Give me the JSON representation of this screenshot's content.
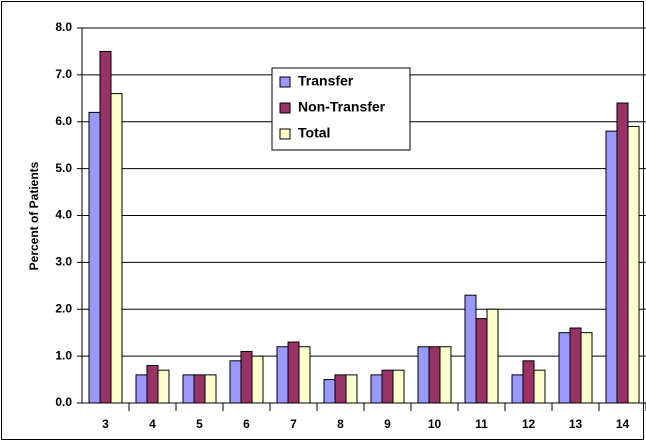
{
  "chart_data": {
    "type": "bar",
    "y_label": "Percent of Patients",
    "categories": [
      "3",
      "4",
      "5",
      "6",
      "7",
      "8",
      "9",
      "10",
      "11",
      "12",
      "13",
      "14"
    ],
    "series": [
      {
        "name": "Transfer",
        "color": "#9999ff",
        "values": [
          6.2,
          0.6,
          0.6,
          0.9,
          1.2,
          0.5,
          0.6,
          1.2,
          2.3,
          0.6,
          1.5,
          5.8
        ]
      },
      {
        "name": "Non-Transfer",
        "color": "#993366",
        "values": [
          7.5,
          0.8,
          0.6,
          1.1,
          1.3,
          0.6,
          0.7,
          1.2,
          1.8,
          0.9,
          1.6,
          6.4
        ]
      },
      {
        "name": "Total",
        "color": "#ffffcc",
        "values": [
          6.6,
          0.7,
          0.6,
          1.0,
          1.2,
          0.6,
          0.7,
          1.2,
          2.0,
          0.7,
          1.5,
          5.9
        ]
      }
    ],
    "ylim": [
      0,
      8
    ],
    "yticks": [
      {
        "value": 0,
        "label": "0.0"
      },
      {
        "value": 1,
        "label": "1.0"
      },
      {
        "value": 2,
        "label": "2.0"
      },
      {
        "value": 3,
        "label": "3.0"
      },
      {
        "value": 4,
        "label": "4.0"
      },
      {
        "value": 5,
        "label": "5.0"
      },
      {
        "value": 6,
        "label": "6.0"
      },
      {
        "value": 7,
        "label": "7.0"
      },
      {
        "value": 8,
        "label": "8.0"
      }
    ],
    "grid": true,
    "legend": "upper center"
  }
}
